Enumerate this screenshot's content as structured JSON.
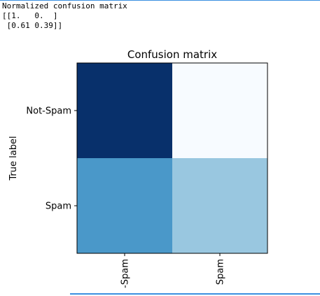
{
  "console": {
    "lines": [
      "Normalized confusion matrix",
      "[[1.   0.  ]",
      " [0.61 0.39]]"
    ]
  },
  "chart_data": {
    "type": "heatmap",
    "title": "Confusion matrix",
    "ylabel": "True label",
    "xlabel": "",
    "row_labels": [
      "Not-Spam",
      "Spam"
    ],
    "col_labels": [
      "Not-Spam",
      "Spam"
    ],
    "col_labels_visible": [
      "-Spam",
      "Spam"
    ],
    "values": [
      [
        1.0,
        0.0
      ],
      [
        0.61,
        0.39
      ]
    ],
    "colormap": "Blues",
    "cell_colors": [
      [
        "#08306b",
        "#f7fbff"
      ],
      [
        "#4a98c9",
        "#99c7e0"
      ]
    ],
    "grid": false
  }
}
